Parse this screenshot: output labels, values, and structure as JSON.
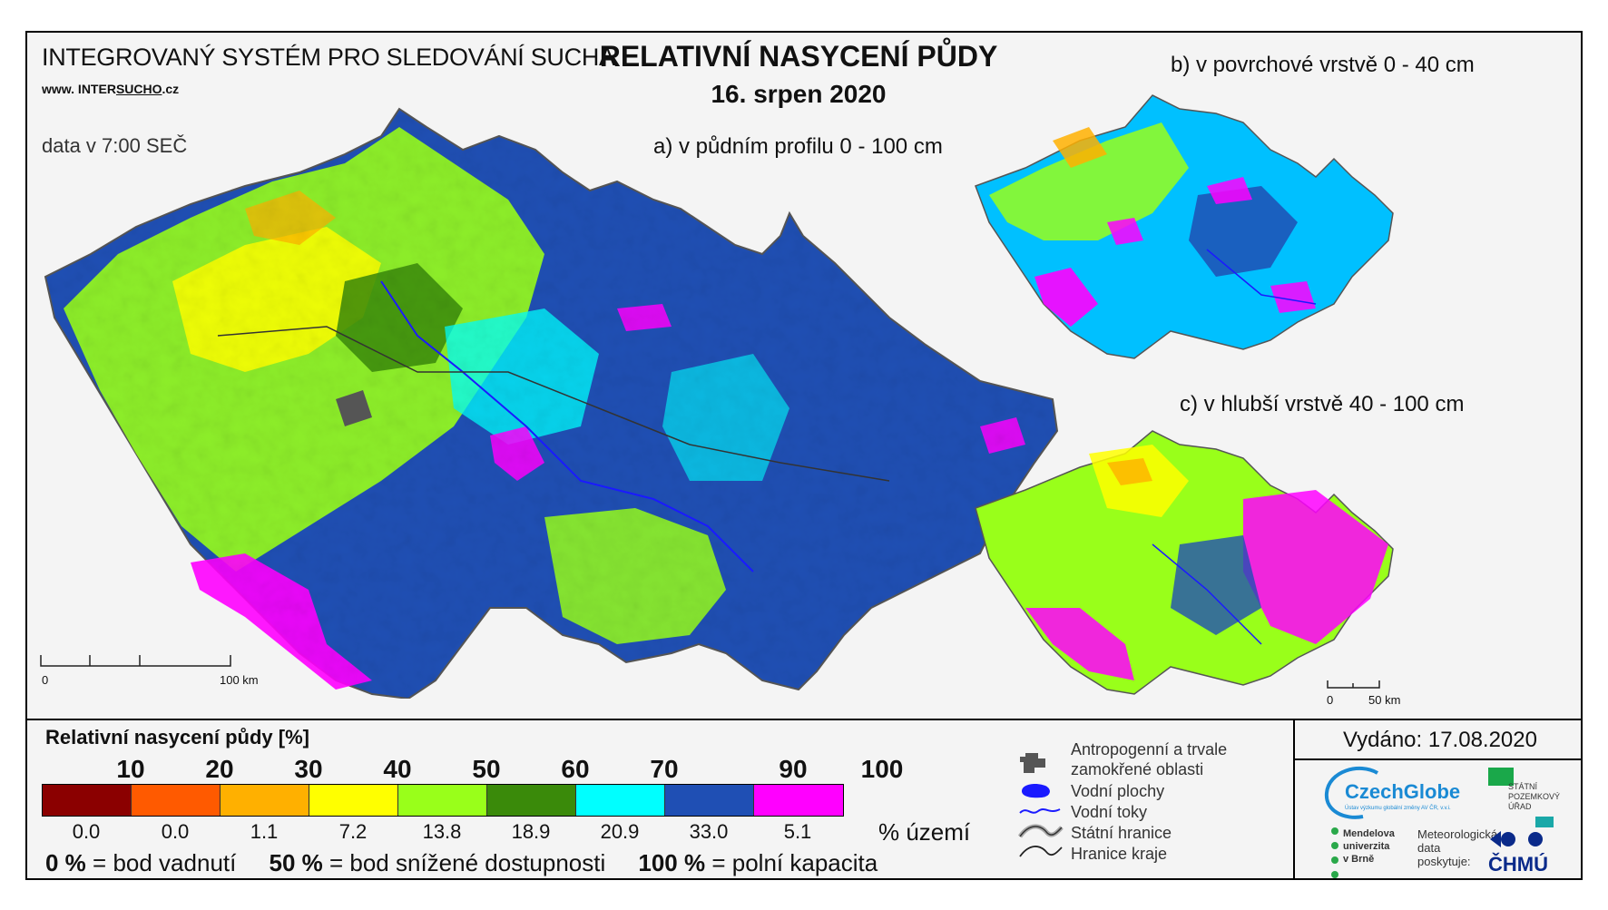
{
  "header": {
    "organization": "INTEGROVANÝ SYSTÉM PRO SLEDOVÁNÍ SUCHA",
    "url_prefix": "www. INTER",
    "url_mid": "SUCHO",
    "url_suffix": ".cz",
    "data_time": "data v 7:00 SEČ",
    "title": "RELATIVNÍ NASYCENÍ PŮDY",
    "date": "16. srpen 2020"
  },
  "maps": {
    "main_label": "a) v půdním profilu 0 - 100 cm",
    "surface_label": "b) v povrchové vrstvě 0 - 40 cm",
    "deep_label": "c) v hlubší vrstvě 40 - 100 cm",
    "main_scale": {
      "start": "0",
      "end": "100 km"
    },
    "small_scale": {
      "start": "0",
      "end": "50 km"
    }
  },
  "legend": {
    "title": "Relativní nasycení půdy [%]",
    "thresholds": [
      "10",
      "20",
      "30",
      "40",
      "50",
      "60",
      "70",
      "90",
      "100"
    ],
    "classes": [
      {
        "color": "#8b0000",
        "share": "0.0"
      },
      {
        "color": "#ff5a00",
        "share": "0.0"
      },
      {
        "color": "#ffb000",
        "share": "1.1"
      },
      {
        "color": "#ffff00",
        "share": "7.2"
      },
      {
        "color": "#99ff1a",
        "share": "13.8"
      },
      {
        "color": "#3a8a0a",
        "share": "18.9"
      },
      {
        "color": "#00ffff",
        "share": "20.9"
      },
      {
        "color": "#1f4fb4",
        "share": "33.0"
      },
      {
        "color": "#ff00ff",
        "share": "5.1"
      }
    ],
    "share_unit": "% území",
    "definitions": [
      {
        "value": "0 %",
        "text": "= bod vadnutí"
      },
      {
        "value": "50 %",
        "text": "= bod snížené dostupnosti"
      },
      {
        "value": "100 %",
        "text": "= polní kapacita"
      }
    ]
  },
  "map_legend": {
    "anthropogenic_line1": "Antropogenní a trvale",
    "anthropogenic_line2": "zamokřené oblasti",
    "water_bodies": "Vodní plochy",
    "water_courses": "Vodní toky",
    "state_border": "Státní hranice",
    "region_border": "Hranice kraje"
  },
  "issued": "Vydáno: 17.08.2020",
  "logos": {
    "czechglobe": "CzechGlobe",
    "czechglobe_sub": "Ústav výzkumu globální změny AV ČR, v.v.i.",
    "spu_line1": "STÁTNÍ",
    "spu_line2": "POZEMKOVÝ",
    "spu_line3": "ÚŘAD",
    "mendel_line1": "Mendelova",
    "mendel_line2": "univerzita",
    "mendel_line3": "v Brně",
    "meteo_line1": "Meteorologická",
    "meteo_line2": "data",
    "meteo_line3": "poskytuje:",
    "chmu": "ČHMÚ"
  }
}
